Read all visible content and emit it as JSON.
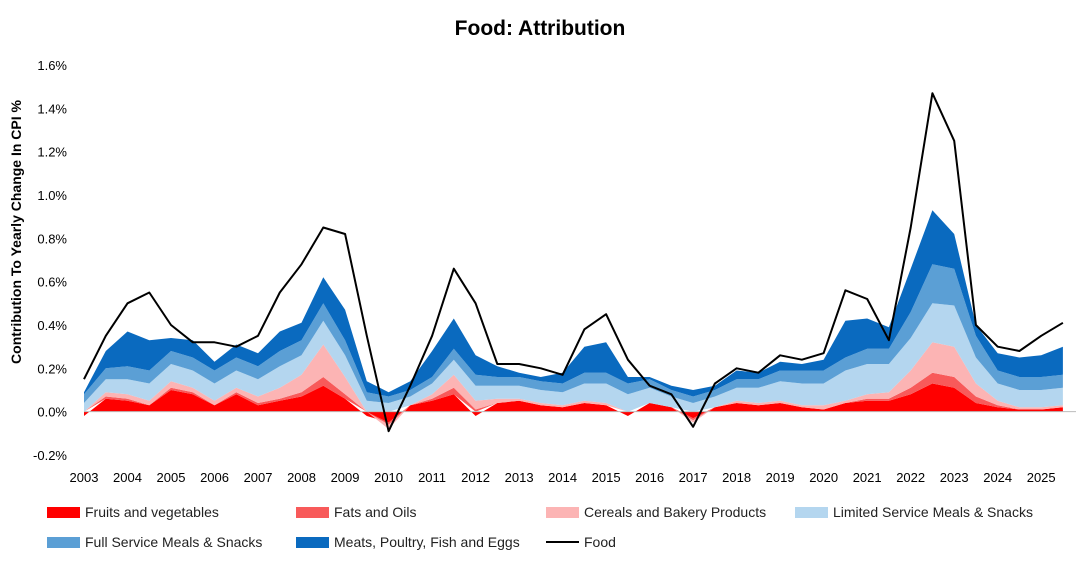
{
  "chart_data": {
    "type": "area",
    "title": "Food: Attribution",
    "xlabel": "",
    "ylabel": "Contribution To Yearly Change In CPI %",
    "ylim": [
      -0.2,
      1.6
    ],
    "xlim": [
      2003,
      2025.8
    ],
    "y_ticks": [
      -0.2,
      0.0,
      0.2,
      0.4,
      0.6,
      0.8,
      1.0,
      1.2,
      1.4,
      1.6
    ],
    "y_tick_labels": [
      "-0.2%",
      "0.0%",
      "0.2%",
      "0.4%",
      "0.6%",
      "0.8%",
      "1.0%",
      "1.2%",
      "1.4%",
      "1.6%"
    ],
    "x_tick_labels": [
      "2003",
      "2004",
      "2005",
      "2006",
      "2007",
      "2008",
      "2009",
      "2010",
      "2011",
      "2012",
      "2013",
      "2014",
      "2015",
      "2016",
      "2017",
      "2018",
      "2019",
      "2020",
      "2021",
      "2022",
      "2023",
      "2024",
      "2025"
    ],
    "grid": false,
    "legend_position": "bottom",
    "x": [
      2003.0,
      2003.5,
      2004.0,
      2004.5,
      2005.0,
      2005.5,
      2006.0,
      2006.5,
      2007.0,
      2007.5,
      2008.0,
      2008.5,
      2009.0,
      2009.5,
      2010.0,
      2010.5,
      2011.0,
      2011.5,
      2012.0,
      2012.5,
      2013.0,
      2013.5,
      2014.0,
      2014.5,
      2015.0,
      2015.5,
      2016.0,
      2016.5,
      2017.0,
      2017.5,
      2018.0,
      2018.5,
      2019.0,
      2019.5,
      2020.0,
      2020.5,
      2021.0,
      2021.5,
      2022.0,
      2022.5,
      2023.0,
      2023.5,
      2024.0,
      2024.5,
      2025.0,
      2025.5
    ],
    "series": [
      {
        "name": "Fruits and vegetables",
        "color": "#ff0000",
        "kind": "area",
        "values": [
          -0.02,
          0.06,
          0.05,
          0.03,
          0.1,
          0.08,
          0.03,
          0.08,
          0.03,
          0.05,
          0.07,
          0.12,
          0.06,
          -0.02,
          -0.05,
          0.03,
          0.05,
          0.08,
          -0.02,
          0.04,
          0.05,
          0.03,
          0.02,
          0.04,
          0.03,
          -0.02,
          0.04,
          0.02,
          -0.03,
          0.02,
          0.04,
          0.03,
          0.04,
          0.02,
          0.01,
          0.04,
          0.05,
          0.05,
          0.08,
          0.13,
          0.11,
          0.04,
          0.02,
          0.01,
          0.01,
          0.02
        ]
      },
      {
        "name": "Fats and Oils",
        "color": "#f85a5a",
        "kind": "area",
        "values": [
          0.0,
          0.01,
          0.01,
          0.0,
          0.01,
          0.01,
          0.0,
          0.01,
          0.01,
          0.01,
          0.02,
          0.04,
          0.02,
          0.0,
          -0.01,
          0.0,
          0.01,
          0.03,
          0.01,
          0.0,
          0.0,
          0.0,
          0.0,
          0.0,
          0.0,
          0.0,
          0.0,
          0.0,
          -0.01,
          0.0,
          0.0,
          0.0,
          0.0,
          0.0,
          0.0,
          0.0,
          0.01,
          0.01,
          0.03,
          0.05,
          0.05,
          0.03,
          0.01,
          0.0,
          0.0,
          0.0
        ]
      },
      {
        "name": "Cereals and Bakery Products",
        "color": "#fcb4b4",
        "kind": "area",
        "values": [
          0.0,
          0.02,
          0.02,
          0.02,
          0.03,
          0.02,
          0.02,
          0.02,
          0.03,
          0.05,
          0.08,
          0.15,
          0.08,
          0.0,
          -0.02,
          0.0,
          0.02,
          0.06,
          0.04,
          0.02,
          0.01,
          0.01,
          0.01,
          0.01,
          0.01,
          0.0,
          0.0,
          0.0,
          -0.01,
          0.0,
          0.01,
          0.01,
          0.01,
          0.01,
          0.02,
          0.01,
          0.02,
          0.03,
          0.08,
          0.14,
          0.14,
          0.06,
          0.02,
          0.01,
          0.01,
          0.01
        ]
      },
      {
        "name": "Limited Service Meals & Snacks",
        "color": "#b4d6ef",
        "kind": "area",
        "values": [
          0.04,
          0.06,
          0.07,
          0.08,
          0.08,
          0.08,
          0.08,
          0.08,
          0.08,
          0.1,
          0.09,
          0.11,
          0.1,
          0.05,
          0.04,
          0.04,
          0.05,
          0.07,
          0.07,
          0.06,
          0.06,
          0.06,
          0.06,
          0.08,
          0.09,
          0.08,
          0.07,
          0.05,
          0.04,
          0.05,
          0.06,
          0.07,
          0.09,
          0.1,
          0.1,
          0.14,
          0.14,
          0.13,
          0.15,
          0.18,
          0.19,
          0.12,
          0.08,
          0.08,
          0.08,
          0.08
        ]
      },
      {
        "name": "Full Service Meals & Snacks",
        "color": "#5b9fd5",
        "kind": "area",
        "values": [
          0.04,
          0.05,
          0.06,
          0.06,
          0.06,
          0.06,
          0.06,
          0.06,
          0.06,
          0.07,
          0.07,
          0.08,
          0.07,
          0.04,
          0.03,
          0.03,
          0.03,
          0.05,
          0.05,
          0.04,
          0.04,
          0.04,
          0.04,
          0.05,
          0.05,
          0.05,
          0.04,
          0.03,
          0.03,
          0.03,
          0.04,
          0.04,
          0.05,
          0.06,
          0.06,
          0.06,
          0.07,
          0.07,
          0.12,
          0.18,
          0.17,
          0.1,
          0.06,
          0.06,
          0.06,
          0.06
        ]
      },
      {
        "name": "Meats, Poultry, Fish and Eggs",
        "color": "#0a6abf",
        "kind": "area",
        "values": [
          0.01,
          0.08,
          0.16,
          0.14,
          0.06,
          0.08,
          0.04,
          0.06,
          0.06,
          0.09,
          0.08,
          0.12,
          0.14,
          0.05,
          0.02,
          0.04,
          0.12,
          0.14,
          0.09,
          0.05,
          0.02,
          0.02,
          0.05,
          0.12,
          0.14,
          0.03,
          0.01,
          0.02,
          0.03,
          0.02,
          0.04,
          0.03,
          0.04,
          0.03,
          0.05,
          0.17,
          0.14,
          0.1,
          0.2,
          0.25,
          0.16,
          0.05,
          0.08,
          0.09,
          0.1,
          0.13
        ]
      },
      {
        "name": "Food",
        "color": "#000000",
        "kind": "line",
        "values": [
          0.15,
          0.35,
          0.5,
          0.55,
          0.4,
          0.32,
          0.32,
          0.3,
          0.35,
          0.55,
          0.68,
          0.85,
          0.82,
          0.35,
          -0.09,
          0.12,
          0.35,
          0.66,
          0.5,
          0.22,
          0.22,
          0.2,
          0.17,
          0.38,
          0.45,
          0.24,
          0.12,
          0.08,
          -0.07,
          0.13,
          0.2,
          0.18,
          0.26,
          0.24,
          0.27,
          0.56,
          0.52,
          0.33,
          0.85,
          1.47,
          1.25,
          0.4,
          0.3,
          0.28,
          0.35,
          0.41
        ]
      }
    ]
  }
}
